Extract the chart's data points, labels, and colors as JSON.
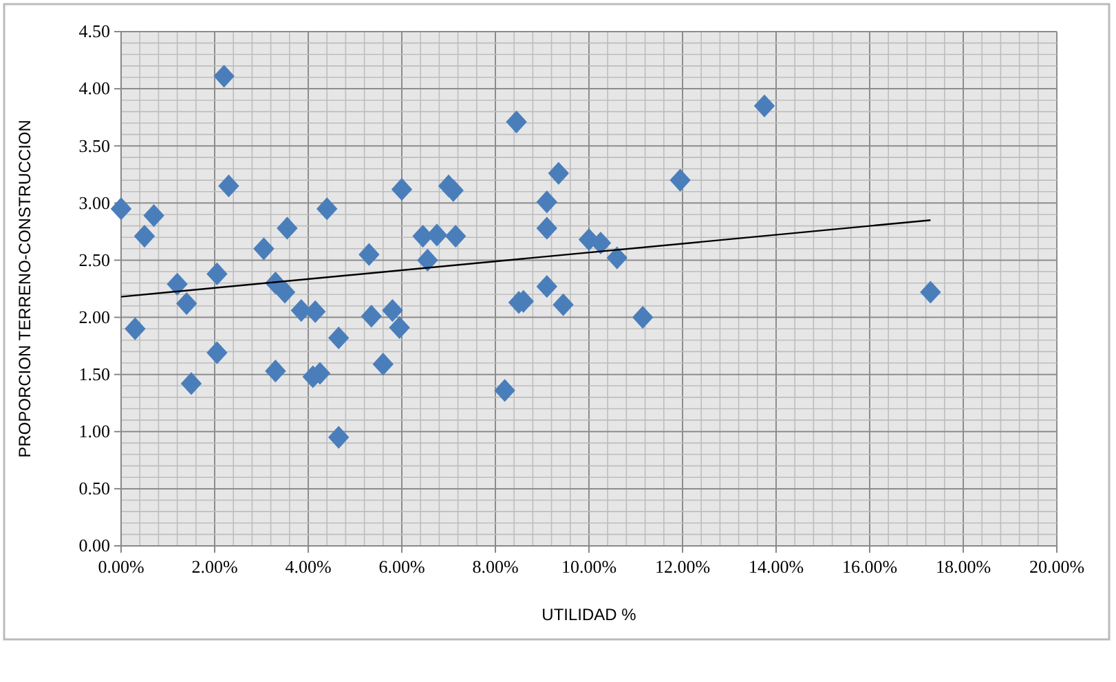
{
  "chart_data": {
    "type": "scatter",
    "xlabel": "UTILIDAD %",
    "ylabel": "PROPORCION TERRENO-CONSTRUCCION",
    "xlim": [
      0,
      20
    ],
    "ylim": [
      0,
      4.5
    ],
    "xticks": [
      {
        "value": 0,
        "label": "0.00%"
      },
      {
        "value": 2,
        "label": "2.00%"
      },
      {
        "value": 4,
        "label": "4.00%"
      },
      {
        "value": 6,
        "label": "6.00%"
      },
      {
        "value": 8,
        "label": "8.00%"
      },
      {
        "value": 10,
        "label": "10.00%"
      },
      {
        "value": 12,
        "label": "12.00%"
      },
      {
        "value": 14,
        "label": "14.00%"
      },
      {
        "value": 16,
        "label": "16.00%"
      },
      {
        "value": 18,
        "label": "18.00%"
      },
      {
        "value": 20,
        "label": "20.00%"
      }
    ],
    "yticks": [
      {
        "value": 0,
        "label": "0.00"
      },
      {
        "value": 0.5,
        "label": "0.50"
      },
      {
        "value": 1,
        "label": "1.00"
      },
      {
        "value": 1.5,
        "label": "1.50"
      },
      {
        "value": 2,
        "label": "2.00"
      },
      {
        "value": 2.5,
        "label": "2.50"
      },
      {
        "value": 3,
        "label": "3.00"
      },
      {
        "value": 3.5,
        "label": "3.50"
      },
      {
        "value": 4,
        "label": "4.00"
      },
      {
        "value": 4.5,
        "label": "4.50"
      }
    ],
    "grid": true,
    "marker": "diamond",
    "series": [
      {
        "color": "#4a7ebb",
        "x": [
          0,
          0.3,
          0.5,
          0.7,
          1.2,
          1.4,
          1.5,
          2.05,
          2.05,
          2.2,
          2.3,
          3.05,
          3.3,
          3.3,
          3.5,
          3.55,
          3.85,
          4.15,
          4.1,
          4.25,
          4.4,
          4.65,
          4.65,
          5.3,
          5.35,
          5.6,
          5.8,
          5.95,
          6,
          6.45,
          6.55,
          6.75,
          7,
          7.1,
          7.15,
          8.2,
          8.45,
          8.5,
          8.6,
          9.1,
          9.1,
          9.1,
          9.35,
          9.45,
          10,
          10.25,
          10.6,
          11.15,
          11.95,
          13.75,
          17.3
        ],
        "values": [
          2.95,
          1.9,
          2.71,
          2.89,
          2.29,
          2.12,
          1.42,
          2.38,
          1.69,
          4.11,
          3.15,
          2.6,
          2.3,
          1.53,
          2.22,
          2.78,
          2.06,
          2.05,
          1.48,
          1.51,
          2.95,
          1.82,
          0.95,
          2.55,
          2.01,
          1.59,
          2.06,
          1.91,
          3.12,
          2.71,
          2.5,
          2.72,
          3.15,
          3.11,
          2.71,
          1.36,
          3.71,
          2.13,
          2.14,
          3.01,
          2.78,
          2.27,
          3.26,
          2.11,
          2.68,
          2.65,
          2.52,
          2,
          3.2,
          3.85,
          2.22
        ]
      },
      {
        "type": "line",
        "color": "#000000",
        "x": [
          0,
          17.3
        ],
        "values": [
          2.18,
          2.85
        ],
        "marker": "none"
      }
    ]
  }
}
